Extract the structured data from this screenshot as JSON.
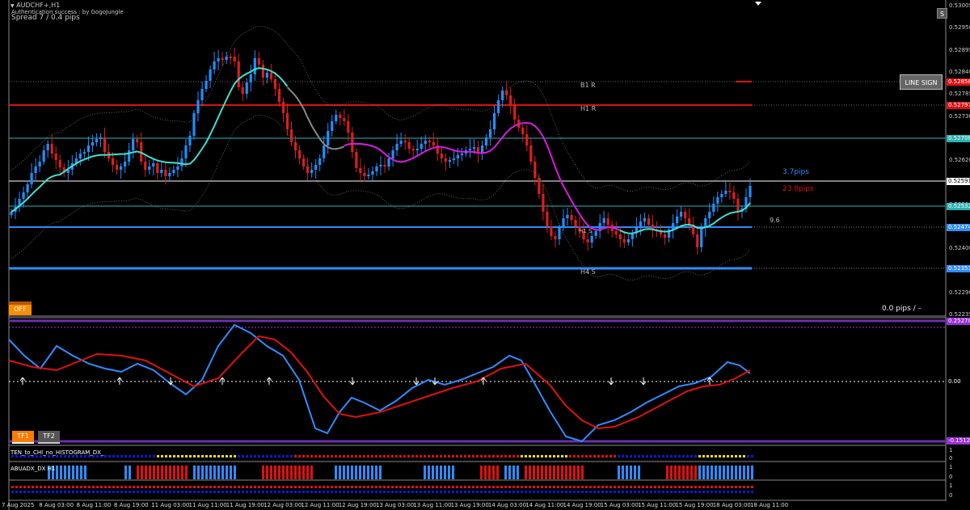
{
  "header": {
    "symbol_title": "AUDCHF+,H1",
    "auth_message": "Authentication success : by GogoJungle",
    "spread": "Spread 7 / 0.4 pips"
  },
  "buttons": {
    "off": "OFF",
    "line_sign": "LINE SIGN",
    "tf1": "TF1",
    "tf2": "TF2",
    "close_s": "S"
  },
  "annotations": {
    "b1r": "B1 R",
    "h1r": "H1 R",
    "h4s": "H4 S",
    "h1s": "H1 S",
    "pips_blue": "3.7pips",
    "pips_red": "23.0pips",
    "ma_value": "9.6",
    "pips_status": "0.0 pips  /  –"
  },
  "indicators": {
    "osc_title": "",
    "histo_title": "TEN_to_CHI_no_HISTOGRAM_DX_",
    "abuadx_title": "ABUADX_DX H1"
  },
  "price_axis": [
    "0.53005",
    "0.52950",
    "0.52895",
    "0.52840",
    "0.52785",
    "0.52730",
    "0.52675",
    "0.52620",
    "0.52565",
    "0.52510",
    "0.52455",
    "0.52400",
    "0.52345",
    "0.52290",
    "0.52235"
  ],
  "price_tags": {
    "b1r": "0.52858",
    "h1r": "0.52797",
    "teal_top": "0.52706",
    "current": "0.52591",
    "teal_low": "0.52532",
    "h1s_tag": "0.52474",
    "h4s": "0.52353"
  },
  "osc_axis": {
    "zero": "0.00",
    "top": "0.25270",
    "bottom": "-0.15129"
  },
  "histo_axis": [
    "1",
    "0"
  ],
  "adx_axis": [
    "1",
    "0"
  ],
  "bottom_axis": [
    "1",
    "0"
  ],
  "time_axis": [
    "7 Aug 2025",
    "8 Aug 03:00",
    "8 Aug 11:00",
    "8 Aug 19:00",
    "11 Aug 03:00",
    "11 Aug 11:00",
    "11 Aug 19:00",
    "12 Aug 03:00",
    "12 Aug 11:00",
    "12 Aug 19:00",
    "13 Aug 03:00",
    "13 Aug 11:00",
    "13 Aug 19:00",
    "14 Aug 03:00",
    "14 Aug 11:00",
    "14 Aug 19:00",
    "15 Aug 03:00",
    "15 Aug 11:00",
    "15 Aug 19:00",
    "18 Aug 03:00",
    "18 Aug 11:00"
  ],
  "colors": {
    "bull": "#1e90ff",
    "bear": "#dc1e1e",
    "ma_fast": "#40e0d0",
    "ma_slow": "#d81be0",
    "level_red": "#e01010",
    "level_blue": "#2f8cff",
    "level_teal": "#2ab3b3",
    "osc_blue": "#2f8cff",
    "osc_red": "#e01010",
    "purple": "#9b30d9",
    "off_btn": "#f07800"
  }
}
